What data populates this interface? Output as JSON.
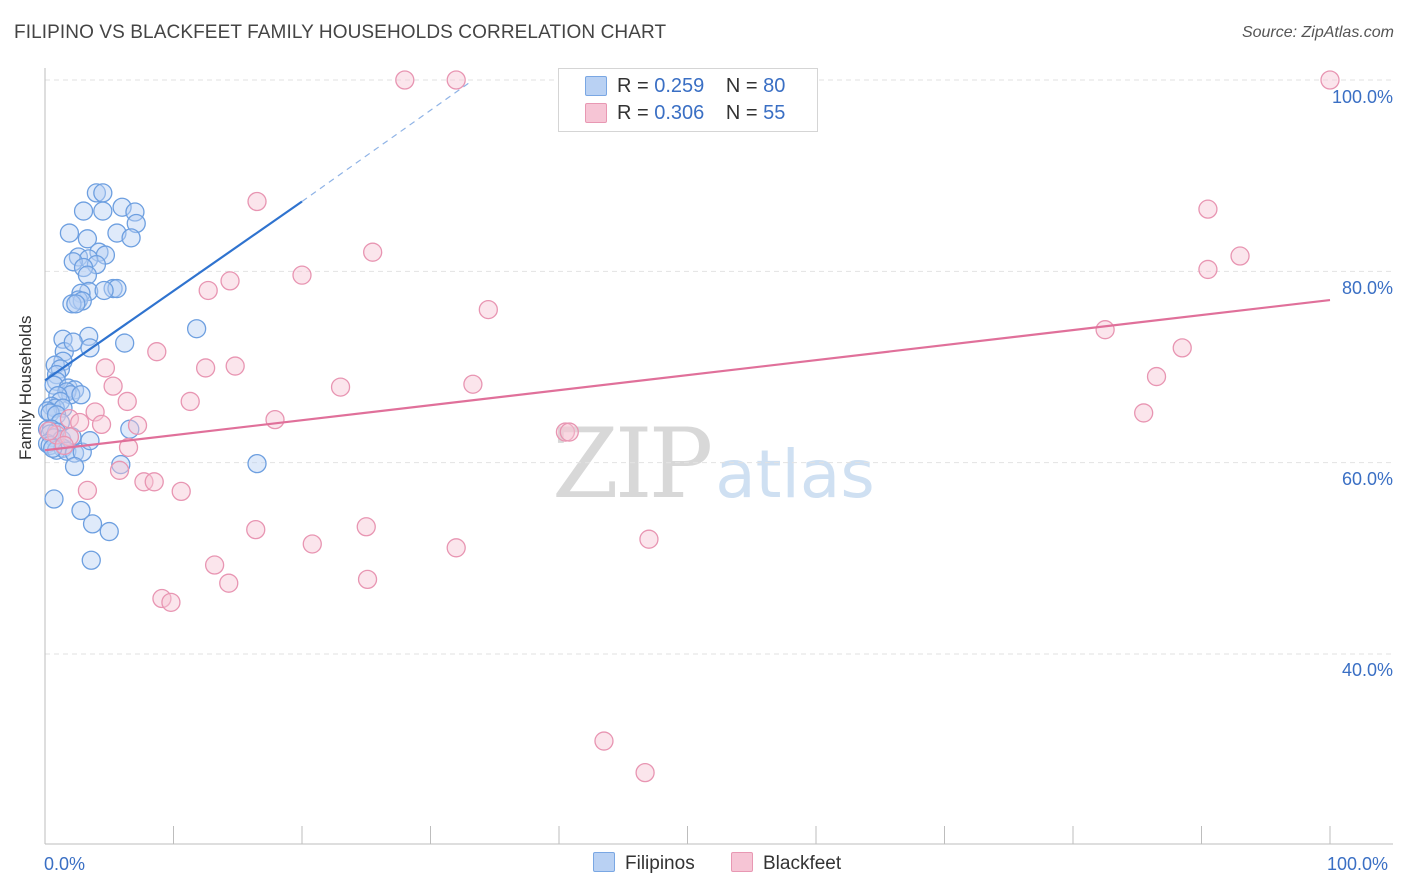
{
  "title": "FILIPINO VS BLACKFEET FAMILY HOUSEHOLDS CORRELATION CHART",
  "source": "Source: ZipAtlas.com",
  "watermark": {
    "zip": "ZIP",
    "atlas": "atlas"
  },
  "colors": {
    "blue": "#3a7fd5",
    "blue_fill": "#b9d1f3",
    "pink": "#e0709a",
    "pink_fill": "#f6c5d5",
    "tick_text": "#3a6fc4"
  },
  "legend_top": {
    "rows": [
      {
        "r_label": "R =",
        "r_value": "0.259",
        "n_label": "N =",
        "n_value": "80"
      },
      {
        "r_label": "R =",
        "r_value": "0.306",
        "n_label": "N =",
        "n_value": "55"
      }
    ]
  },
  "legend_bottom": {
    "blue_label": "Filipinos",
    "pink_label": "Blackfeet"
  },
  "chart_data": {
    "type": "scatter",
    "title": "FILIPINO VS BLACKFEET FAMILY HOUSEHOLDS CORRELATION CHART",
    "xlabel": "",
    "ylabel": "Family Households",
    "xlim": [
      0,
      100
    ],
    "ylim": [
      20,
      102
    ],
    "x_tick_labels": [
      "0.0%",
      "100.0%"
    ],
    "y_ticks": [
      {
        "value": 40,
        "label": "40.0%"
      },
      {
        "value": 60,
        "label": "60.0%"
      },
      {
        "value": 80,
        "label": "80.0%"
      },
      {
        "value": 100,
        "label": "100.0%"
      }
    ],
    "grid": true,
    "series": [
      {
        "name": "Filipinos",
        "color": "#3a7fd5",
        "trend": {
          "x0": 0,
          "y0": 68.6,
          "x1": 20,
          "y1": 87.3,
          "dash_to_x": 33,
          "dash_to_y": 99.7
        },
        "points": [
          [
            4.0,
            88.2
          ],
          [
            4.5,
            88.2
          ],
          [
            6.0,
            86.7
          ],
          [
            3.0,
            86.3
          ],
          [
            4.5,
            86.3
          ],
          [
            7.0,
            86.2
          ],
          [
            7.1,
            85.0
          ],
          [
            1.9,
            84.0
          ],
          [
            5.6,
            84.0
          ],
          [
            6.7,
            83.5
          ],
          [
            3.3,
            83.4
          ],
          [
            4.2,
            82.0
          ],
          [
            4.7,
            81.7
          ],
          [
            2.6,
            81.5
          ],
          [
            3.4,
            81.3
          ],
          [
            2.2,
            81.0
          ],
          [
            4.0,
            80.7
          ],
          [
            3.0,
            80.4
          ],
          [
            3.3,
            79.6
          ],
          [
            5.3,
            78.2
          ],
          [
            5.6,
            78.2
          ],
          [
            3.4,
            77.9
          ],
          [
            4.6,
            78.0
          ],
          [
            2.8,
            77.7
          ],
          [
            2.6,
            77.0
          ],
          [
            2.9,
            76.9
          ],
          [
            2.1,
            76.6
          ],
          [
            2.4,
            76.6
          ],
          [
            11.8,
            74.0
          ],
          [
            1.4,
            72.9
          ],
          [
            3.4,
            73.2
          ],
          [
            1.5,
            71.6
          ],
          [
            2.2,
            72.6
          ],
          [
            6.2,
            72.5
          ],
          [
            3.5,
            72.0
          ],
          [
            1.4,
            70.6
          ],
          [
            0.8,
            70.2
          ],
          [
            1.2,
            69.8
          ],
          [
            0.9,
            69.2
          ],
          [
            0.9,
            68.5
          ],
          [
            0.7,
            68.1
          ],
          [
            1.8,
            67.8
          ],
          [
            2.3,
            67.6
          ],
          [
            1.7,
            67.4
          ],
          [
            2.0,
            67.1
          ],
          [
            1.0,
            67.0
          ],
          [
            2.8,
            67.1
          ],
          [
            1.2,
            66.4
          ],
          [
            0.5,
            65.9
          ],
          [
            0.8,
            65.7
          ],
          [
            1.4,
            65.7
          ],
          [
            0.2,
            65.4
          ],
          [
            0.4,
            65.2
          ],
          [
            0.9,
            65.0
          ],
          [
            1.2,
            64.2
          ],
          [
            0.2,
            63.5
          ],
          [
            0.5,
            63.5
          ],
          [
            0.9,
            63.2
          ],
          [
            0.4,
            63.0
          ],
          [
            0.7,
            62.6
          ],
          [
            1.3,
            62.4
          ],
          [
            2.1,
            62.7
          ],
          [
            0.2,
            62.0
          ],
          [
            0.4,
            61.8
          ],
          [
            1.4,
            61.5
          ],
          [
            0.9,
            61.3
          ],
          [
            1.7,
            61.2
          ],
          [
            2.3,
            61.0
          ],
          [
            2.9,
            61.1
          ],
          [
            6.6,
            63.5
          ],
          [
            3.5,
            62.3
          ],
          [
            0.6,
            61.5
          ],
          [
            16.5,
            59.9
          ],
          [
            2.3,
            59.6
          ],
          [
            5.9,
            59.8
          ],
          [
            0.7,
            56.2
          ],
          [
            2.8,
            55.0
          ],
          [
            3.7,
            53.6
          ],
          [
            5.0,
            52.8
          ],
          [
            3.6,
            49.8
          ]
        ]
      },
      {
        "name": "Blackfeet",
        "color": "#e0709a",
        "trend": {
          "x0": 0,
          "y0": 61.3,
          "x1": 100,
          "y1": 77.0
        },
        "points": [
          [
            28.0,
            100.0
          ],
          [
            32.0,
            100.0
          ],
          [
            100.0,
            100.0
          ],
          [
            16.5,
            87.3
          ],
          [
            90.5,
            86.5
          ],
          [
            25.5,
            82.0
          ],
          [
            93.0,
            81.6
          ],
          [
            20.0,
            79.6
          ],
          [
            90.5,
            80.2
          ],
          [
            14.4,
            79.0
          ],
          [
            12.7,
            78.0
          ],
          [
            34.5,
            76.0
          ],
          [
            82.5,
            73.9
          ],
          [
            88.5,
            72.0
          ],
          [
            8.7,
            71.6
          ],
          [
            4.7,
            69.9
          ],
          [
            12.5,
            69.9
          ],
          [
            14.8,
            70.1
          ],
          [
            86.5,
            69.0
          ],
          [
            5.3,
            68.0
          ],
          [
            23.0,
            67.9
          ],
          [
            33.3,
            68.2
          ],
          [
            6.4,
            66.4
          ],
          [
            11.3,
            66.4
          ],
          [
            85.5,
            65.2
          ],
          [
            3.9,
            65.3
          ],
          [
            1.9,
            64.6
          ],
          [
            17.9,
            64.5
          ],
          [
            2.7,
            64.2
          ],
          [
            7.2,
            63.9
          ],
          [
            4.4,
            64.0
          ],
          [
            40.5,
            63.2
          ],
          [
            40.8,
            63.2
          ],
          [
            0.9,
            62.9
          ],
          [
            1.9,
            62.7
          ],
          [
            6.5,
            61.6
          ],
          [
            5.8,
            59.2
          ],
          [
            7.7,
            58.0
          ],
          [
            8.5,
            58.0
          ],
          [
            3.3,
            57.1
          ],
          [
            10.6,
            57.0
          ],
          [
            25.0,
            53.3
          ],
          [
            16.4,
            53.0
          ],
          [
            47.0,
            52.0
          ],
          [
            20.8,
            51.5
          ],
          [
            32.0,
            51.1
          ],
          [
            13.2,
            49.3
          ],
          [
            25.1,
            47.8
          ],
          [
            14.3,
            47.4
          ],
          [
            9.1,
            45.8
          ],
          [
            9.8,
            45.4
          ],
          [
            43.5,
            30.9
          ],
          [
            46.7,
            27.6
          ],
          [
            1.5,
            61.8
          ],
          [
            0.3,
            63.3
          ]
        ]
      }
    ]
  }
}
